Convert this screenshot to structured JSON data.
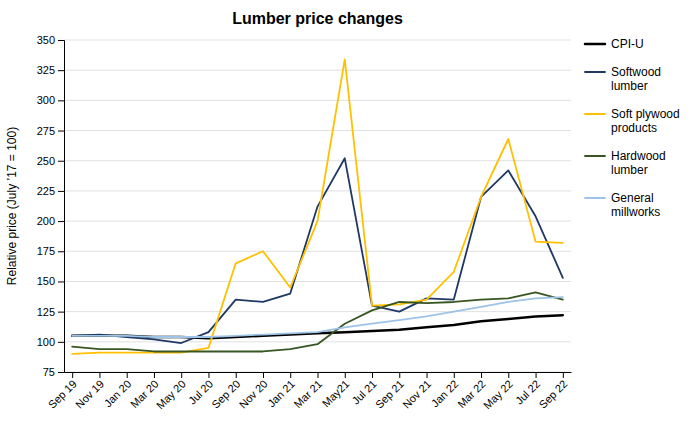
{
  "chart_data": {
    "type": "line",
    "title": "Lumber price changes",
    "ylabel": "Relative price (July ’17 = 100)",
    "categories": [
      "Sep 19",
      "Nov 19",
      "Jan 20",
      "Mar 20",
      "May 20",
      "Jul 20",
      "Sep 20",
      "Nov 20",
      "Jan 21",
      "Mar 21",
      "May21",
      "Jul 21",
      "Sep 21",
      "Nov 21",
      "Jan 22",
      "Mar 22",
      "May 22",
      "Jul 22",
      "Sep 22"
    ],
    "series": [
      {
        "name": "CPI-U",
        "color": "#000000",
        "values": [
          105,
          105,
          105,
          104,
          104,
          103,
          104,
          105,
          106,
          107,
          108,
          109,
          110,
          112,
          114,
          117,
          119,
          121,
          122
        ]
      },
      {
        "name": "Softwood\nlumber",
        "color": "#1f3864",
        "values": [
          105,
          106,
          104,
          102,
          99,
          108,
          135,
          133,
          140,
          212,
          252,
          130,
          125,
          136,
          135,
          220,
          242,
          204,
          153
        ]
      },
      {
        "name": "Soft plywood\nproducts",
        "color": "#ffc000",
        "values": [
          90,
          91,
          91,
          91,
          91,
          95,
          165,
          175,
          145,
          200,
          334,
          130,
          131,
          135,
          158,
          220,
          268,
          183,
          182
        ]
      },
      {
        "name": "Hardwood\nlumber",
        "color": "#375623",
        "values": [
          96,
          94,
          94,
          92,
          92,
          92,
          92,
          92,
          94,
          98,
          115,
          126,
          133,
          132,
          133,
          135,
          136,
          141,
          135
        ]
      },
      {
        "name": "General\nmillworks",
        "color": "#9dc3e6",
        "values": [
          105,
          105,
          105,
          104,
          104,
          104,
          105,
          106,
          107,
          108,
          112,
          115,
          118,
          121,
          125,
          129,
          133,
          136,
          137
        ]
      }
    ],
    "ylim": [
      75,
      350
    ],
    "yticks": [
      75,
      100,
      125,
      150,
      175,
      200,
      225,
      250,
      275,
      300,
      325,
      350
    ],
    "grid": true,
    "legend": "right"
  }
}
